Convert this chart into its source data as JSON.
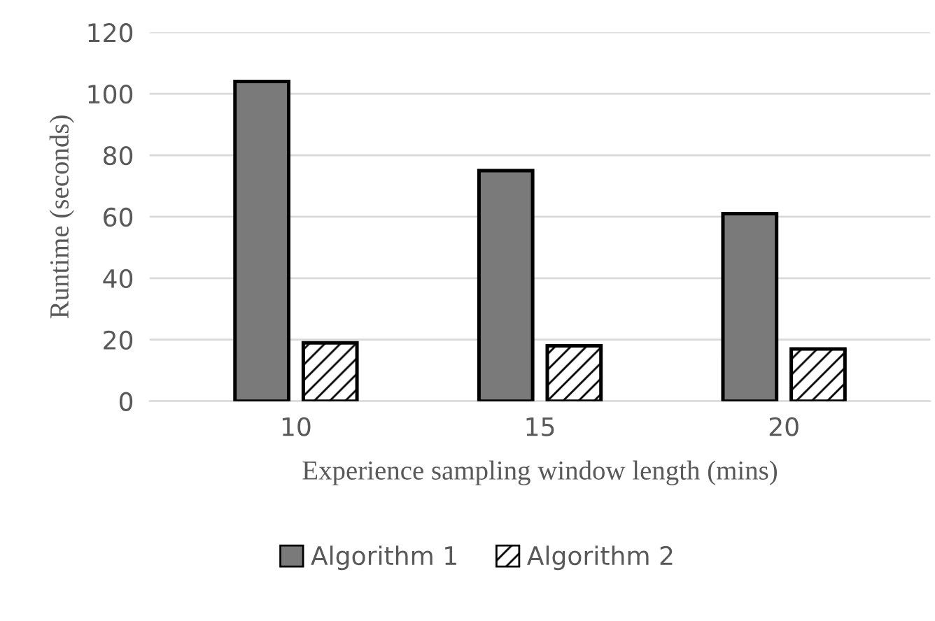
{
  "chart_data": {
    "type": "bar",
    "xlabel": "Experience sampling window length (mins)",
    "ylabel": "Runtime (seconds)",
    "categories": [
      "10",
      "15",
      "20"
    ],
    "series": [
      {
        "name": "Algorithm 1",
        "color": "#7a7a7a",
        "values": [
          104,
          75,
          61
        ]
      },
      {
        "name": "Algorithm 2",
        "color": "#ffffff",
        "values": [
          19,
          18,
          17
        ]
      }
    ],
    "ylim": [
      0,
      120
    ],
    "yticks": [
      0,
      20,
      40,
      60,
      80,
      100,
      120
    ],
    "grid": "y",
    "legend": "bottom"
  }
}
